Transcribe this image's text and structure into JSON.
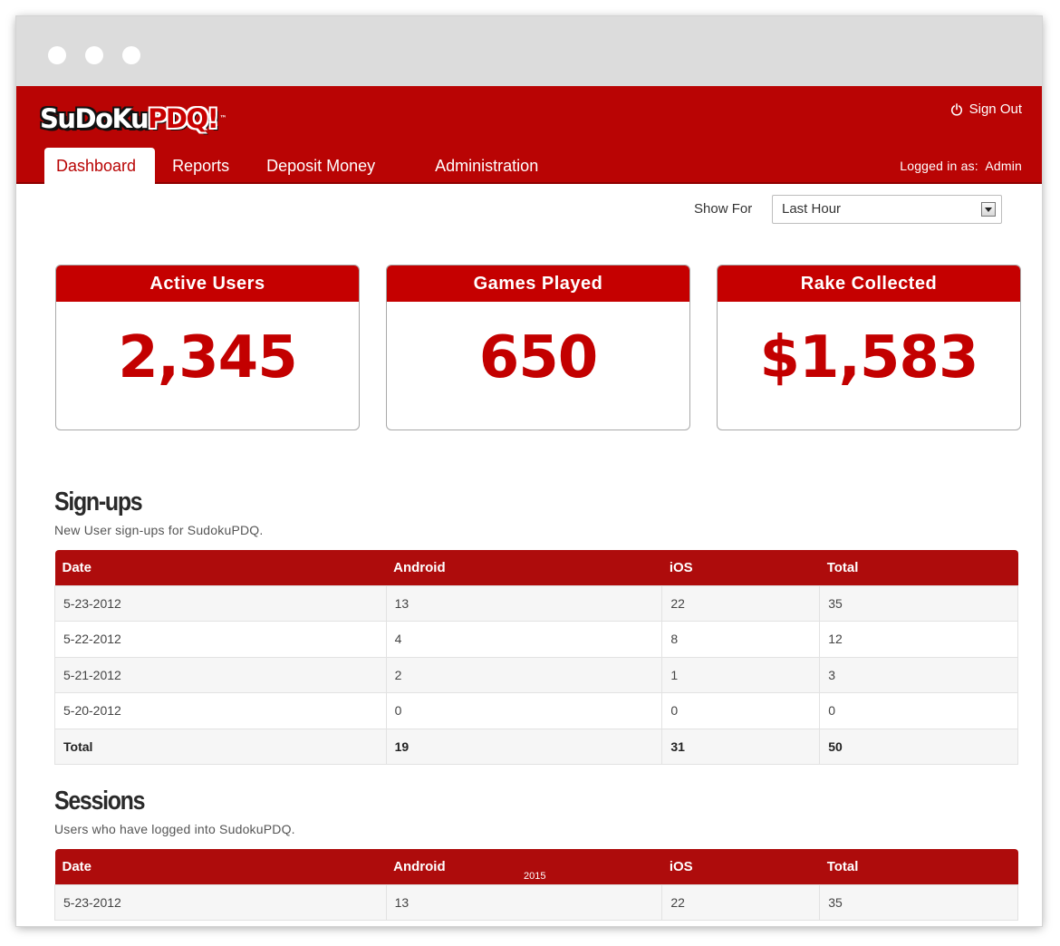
{
  "window": {
    "controls": [
      "close",
      "minimize",
      "maximize"
    ]
  },
  "header": {
    "logo_part1": "SuDoKu",
    "logo_part2": "PDQ!",
    "logo_tm": "™",
    "sign_out_label": "Sign Out",
    "sign_out_icon": "power-icon",
    "logged_in_label": "Logged in as:",
    "logged_in_user": "Admin",
    "tabs": [
      {
        "label": "Dashboard",
        "active": true
      },
      {
        "label": "Reports",
        "active": false
      },
      {
        "label": "Deposit Money",
        "active": false
      },
      {
        "label": "Administration",
        "active": false
      }
    ]
  },
  "filter": {
    "label": "Show For",
    "selected": "Last Hour"
  },
  "stats": [
    {
      "title": "Active Users",
      "value": "2,345"
    },
    {
      "title": "Games Played",
      "value": "650"
    },
    {
      "title": "Rake Collected",
      "value": "$1,583"
    }
  ],
  "signups": {
    "title": "Sign-ups",
    "subtitle": "New User sign-ups for SudokuPDQ.",
    "columns": [
      "Date",
      "Android",
      "iOS",
      "Total"
    ],
    "rows": [
      [
        "5-23-2012",
        "13",
        "22",
        "35"
      ],
      [
        "5-22-2012",
        "4",
        "8",
        "12"
      ],
      [
        "5-21-2012",
        "2",
        "1",
        "3"
      ],
      [
        "5-20-2012",
        "0",
        "0",
        "0"
      ]
    ],
    "total": [
      "Total",
      "19",
      "31",
      "50"
    ]
  },
  "sessions": {
    "title": "Sessions",
    "subtitle": "Users who have logged into SudokuPDQ.",
    "columns": [
      "Date",
      "Android",
      "iOS",
      "Total"
    ],
    "rows": [
      [
        "5-23-2012",
        "13",
        "22",
        "35"
      ]
    ]
  },
  "footer_year": "2015",
  "colors": {
    "brand_red": "#b90404",
    "header_bar": "#dcdcdc",
    "table_head": "#ae0c0c"
  }
}
